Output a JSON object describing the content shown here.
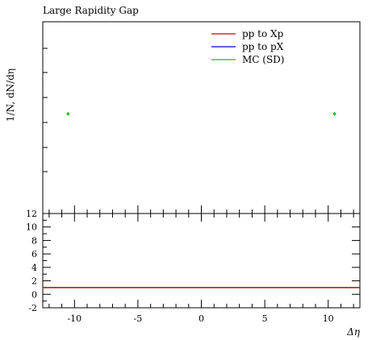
{
  "chart_data": [
    {
      "type": "scatter",
      "title": "Large Rapidity Gap",
      "xlabel": "",
      "ylabel": "1/N, dN/dη",
      "xlim": [
        -12.5,
        12.5
      ],
      "log_y": true,
      "legend": {
        "placement": "top-right",
        "entries": [
          {
            "name": "pp to Xp",
            "color": "#cc0000"
          },
          {
            "name": "pp to pX",
            "color": "#0000cc"
          },
          {
            "name": "MC (SD)",
            "color": "#00cc00"
          }
        ]
      },
      "series": [
        {
          "name": "pp to Xp",
          "color": "#cc0000",
          "x": [
            -10.5,
            10.5
          ],
          "y_level": 0.52
        },
        {
          "name": "pp to pX",
          "color": "#0000cc",
          "x": [
            -10.5,
            10.5
          ],
          "y_level": 0.52
        },
        {
          "name": "MC (SD)",
          "color": "#00cc00",
          "x": [
            -10.5,
            10.5
          ],
          "y_level": 0.52
        }
      ]
    },
    {
      "type": "line",
      "title": "",
      "xlabel": "Δη",
      "ylabel": "",
      "xlim": [
        -12.5,
        12.5
      ],
      "ylim": [
        -2,
        12
      ],
      "x_ticks": [
        -10,
        -5,
        0,
        5,
        10
      ],
      "x_tick_labels": [
        "-10",
        "-5",
        "0",
        "5",
        "10"
      ],
      "y_ticks": [
        -2,
        0,
        2,
        4,
        6,
        8,
        10,
        12
      ],
      "y_tick_labels": [
        "-2",
        "0",
        "2",
        "4",
        "6",
        "8",
        "10",
        "12"
      ],
      "series": [
        {
          "name": "MC (SD)",
          "color": "#00cc00",
          "x": [
            -12.5,
            12.5
          ],
          "values": [
            1,
            1
          ]
        },
        {
          "name": "pp to Xp",
          "color": "#cc0000",
          "x": [
            -12.5,
            12.5
          ],
          "values": [
            1,
            1
          ]
        }
      ]
    }
  ]
}
